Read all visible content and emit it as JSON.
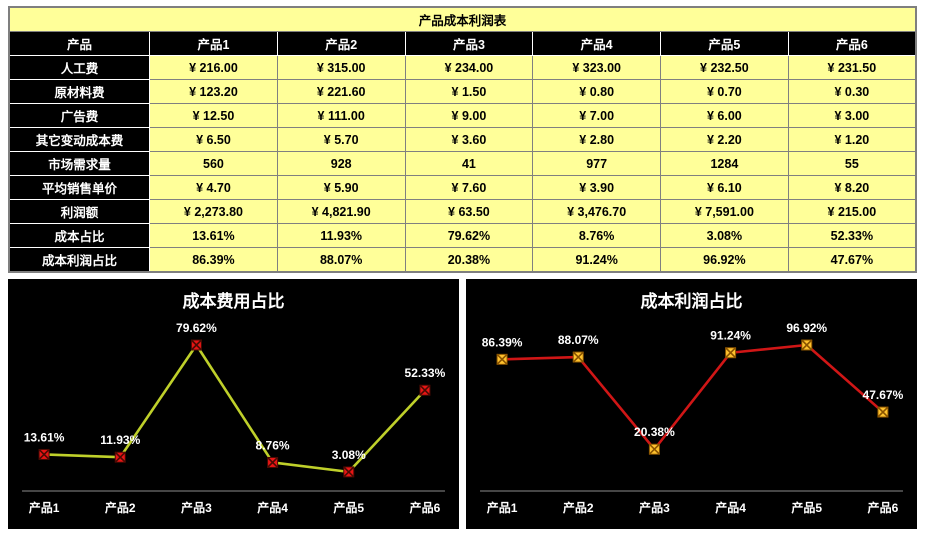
{
  "table": {
    "title": "产品成本利润表",
    "header": [
      "产品",
      "产品1",
      "产品2",
      "产品3",
      "产品4",
      "产品5",
      "产品6"
    ],
    "rows": [
      {
        "label": "人工费",
        "values": [
          "¥ 216.00",
          "¥ 315.00",
          "¥ 234.00",
          "¥ 323.00",
          "¥ 232.50",
          "¥ 231.50"
        ]
      },
      {
        "label": "原材料费",
        "values": [
          "¥ 123.20",
          "¥ 221.60",
          "¥ 1.50",
          "¥ 0.80",
          "¥ 0.70",
          "¥ 0.30"
        ]
      },
      {
        "label": "广告费",
        "values": [
          "¥ 12.50",
          "¥ 111.00",
          "¥ 9.00",
          "¥ 7.00",
          "¥ 6.00",
          "¥ 3.00"
        ]
      },
      {
        "label": "其它变动成本费",
        "values": [
          "¥ 6.50",
          "¥ 5.70",
          "¥ 3.60",
          "¥ 2.80",
          "¥ 2.20",
          "¥ 1.20"
        ]
      },
      {
        "label": "市场需求量",
        "values": [
          "560",
          "928",
          "41",
          "977",
          "1284",
          "55"
        ]
      },
      {
        "label": "平均销售单价",
        "values": [
          "¥ 4.70",
          "¥ 5.90",
          "¥ 7.60",
          "¥ 3.90",
          "¥ 6.10",
          "¥ 8.20"
        ]
      },
      {
        "label": "利润额",
        "values": [
          "¥ 2,273.80",
          "¥ 4,821.90",
          "¥ 63.50",
          "¥ 3,476.70",
          "¥ 7,591.00",
          "¥ 215.00"
        ]
      },
      {
        "label": "成本占比",
        "values": [
          "13.61%",
          "11.93%",
          "79.62%",
          "8.76%",
          "3.08%",
          "52.33%"
        ]
      },
      {
        "label": "成本利润占比",
        "values": [
          "86.39%",
          "88.07%",
          "20.38%",
          "91.24%",
          "96.92%",
          "47.67%"
        ]
      }
    ]
  },
  "colors": {
    "cell_bg": "#ffff99",
    "dark_bg": "#000000",
    "chart_bg": "#000000"
  },
  "chart_data": [
    {
      "type": "line",
      "title": "成本费用占比",
      "categories": [
        "产品1",
        "产品2",
        "产品3",
        "产品4",
        "产品5",
        "产品6"
      ],
      "values": [
        13.61,
        11.93,
        79.62,
        8.76,
        3.08,
        52.33
      ],
      "point_labels": [
        "13.61%",
        "11.93%",
        "79.62%",
        "8.76%",
        "3.08%",
        "52.33%"
      ],
      "ylim": [
        0,
        80
      ],
      "grid": false,
      "legend": "none",
      "line_color": "#bfd02a",
      "marker_fill": "#e81515",
      "marker_stroke": "#4a0b04",
      "text_color": "#ffffff",
      "background": "#000000"
    },
    {
      "type": "line",
      "title": "成本利润占比",
      "categories": [
        "产品1",
        "产品2",
        "产品3",
        "产品4",
        "产品5",
        "产品6"
      ],
      "values": [
        86.39,
        88.07,
        20.38,
        91.24,
        96.92,
        47.67
      ],
      "point_labels": [
        "86.39%",
        "88.07%",
        "20.38%",
        "91.24%",
        "96.92%",
        "47.67%"
      ],
      "ylim": [
        0,
        100
      ],
      "grid": false,
      "legend": "none",
      "line_color": "#d01616",
      "marker_fill": "#ffc22e",
      "marker_stroke": "#8a5400",
      "text_color": "#ffffff",
      "background": "#000000"
    }
  ]
}
